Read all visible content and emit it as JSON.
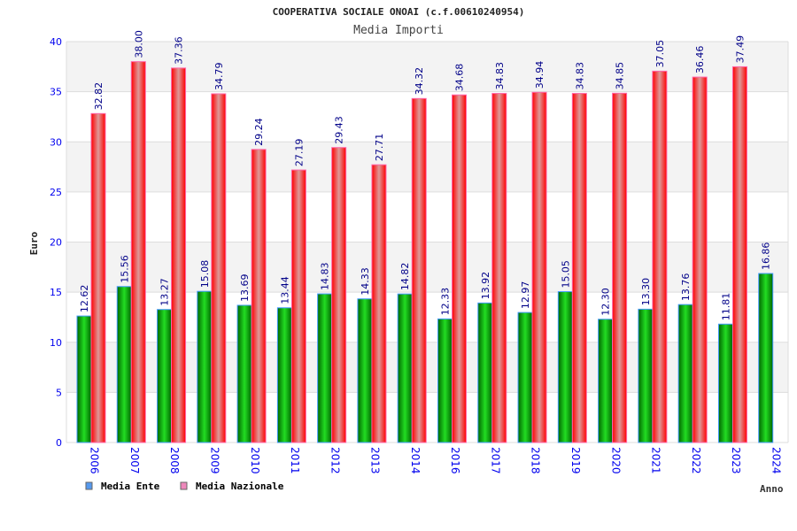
{
  "chart_data": {
    "type": "bar",
    "title": "COOPERATIVA SOCIALE ONOAI (c.f.00610240954)",
    "subtitle": "Media Importi",
    "xlabel": "Anno",
    "ylabel": "Euro",
    "ylim": [
      0,
      40
    ],
    "yticks": [
      "0",
      "5",
      "10",
      "15",
      "20",
      "25",
      "30",
      "35",
      "40"
    ],
    "categories": [
      "2006",
      "2007",
      "2008",
      "2009",
      "2010",
      "2011",
      "2012",
      "2013",
      "2014",
      "2016",
      "2017",
      "2018",
      "2019",
      "2020",
      "2021",
      "2022",
      "2023",
      "2024"
    ],
    "series": [
      {
        "name": "Media Ente",
        "color": "#00aa00",
        "legend_color": "#5599ee",
        "values": [
          12.62,
          15.56,
          13.27,
          15.08,
          13.69,
          13.44,
          14.83,
          14.33,
          14.82,
          12.33,
          13.92,
          12.97,
          15.05,
          12.3,
          13.3,
          13.76,
          11.81,
          16.86
        ],
        "labels": [
          "12.62",
          "15.56",
          "13.27",
          "15.08",
          "13.69",
          "13.44",
          "14.83",
          "14.33",
          "14.82",
          "12.33",
          "13.92",
          "12.97",
          "15.05",
          "12.30",
          "13.30",
          "13.76",
          "11.81",
          "16.86"
        ]
      },
      {
        "name": "Media Nazionale",
        "color": "#ff0000",
        "legend_color": "#ee88bb",
        "values": [
          32.82,
          38.0,
          37.36,
          34.79,
          29.24,
          27.19,
          29.43,
          27.71,
          34.32,
          34.68,
          34.83,
          34.94,
          34.83,
          34.85,
          37.05,
          36.46,
          37.49,
          null
        ],
        "labels": [
          "32.82",
          "38.00",
          "37.36",
          "34.79",
          "29.24",
          "27.19",
          "29.43",
          "27.71",
          "34.32",
          "34.68",
          "34.83",
          "34.94",
          "34.83",
          "34.85",
          "37.05",
          "36.46",
          "37.49",
          null
        ]
      }
    ],
    "grid": true,
    "legend_position": "bottom-left"
  }
}
